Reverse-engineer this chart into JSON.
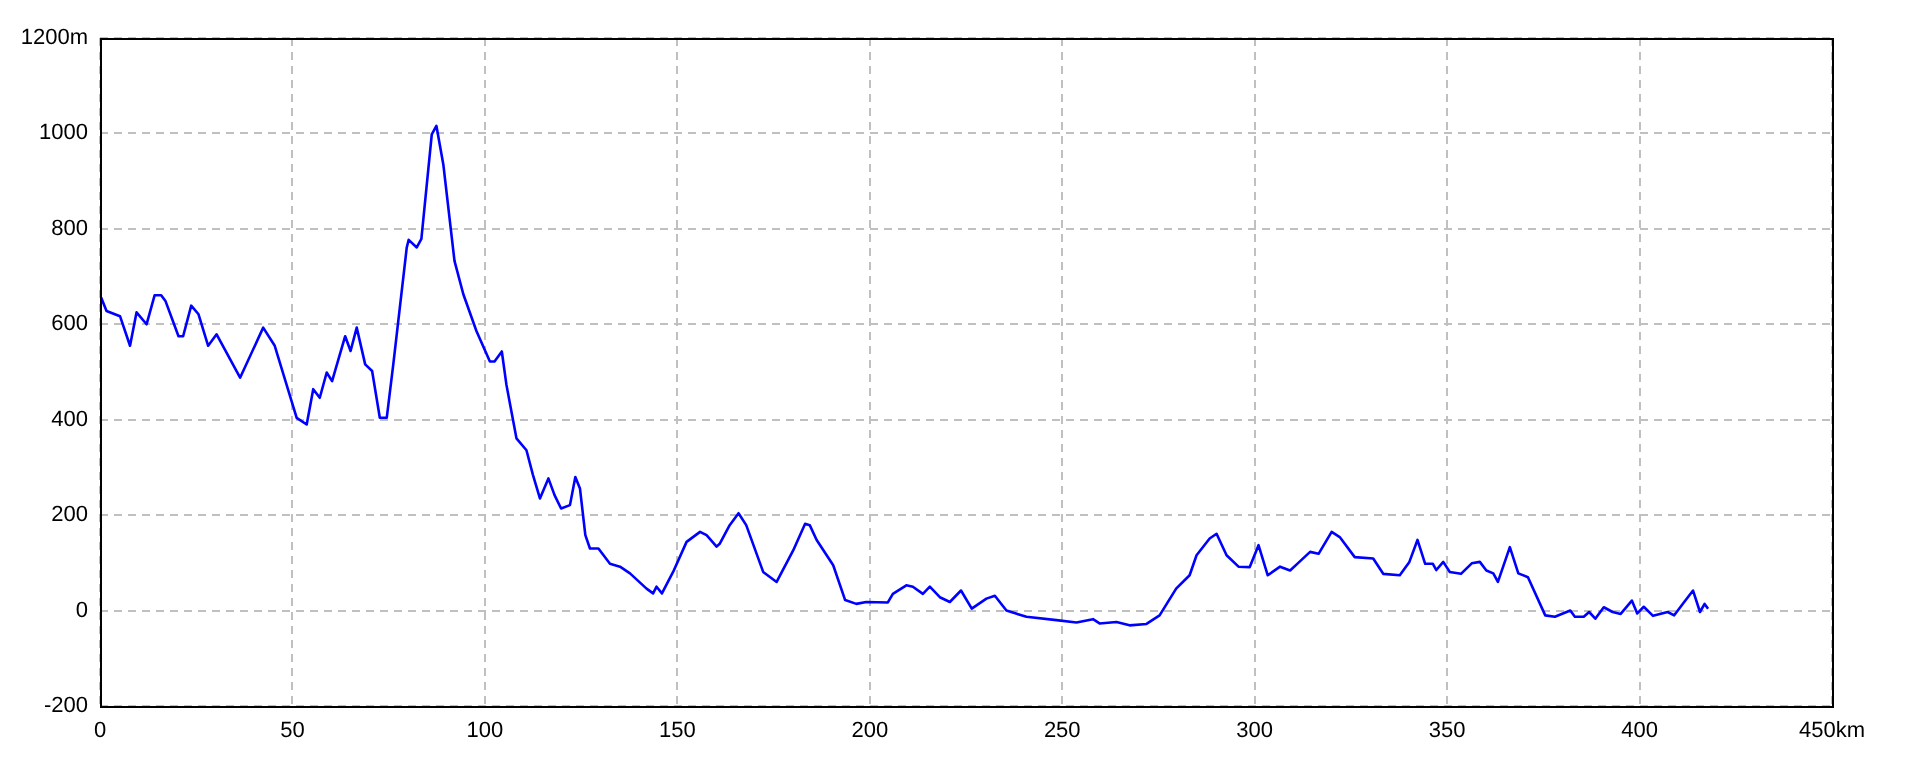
{
  "chart_data": {
    "type": "line",
    "series": [
      {
        "color": "#0000ff",
        "x": [
          0.3,
          1.7,
          5.2,
          7.8,
          9.5,
          12.1,
          14.2,
          15.9,
          17.0,
          20.4,
          21.6,
          23.7,
          25.6,
          28.1,
          30.3,
          36.4,
          42.4,
          45.4,
          51.1,
          53.7,
          55.4,
          57.1,
          58.9,
          60.3,
          63.7,
          65.1,
          66.7,
          68.9,
          70.7,
          72.7,
          74.5,
          76.2,
          79.7,
          80.2,
          82.3,
          83.5,
          86.2,
          87.4,
          89.2,
          92.1,
          94.4,
          97.8,
          101.3,
          102.5,
          104.4,
          105.6,
          108.2,
          110.8,
          112.5,
          114.3,
          116.5,
          118.1,
          119.8,
          122.1,
          123.5,
          124.7,
          126.1,
          127.3,
          129.5,
          132.5,
          135.1,
          137.7,
          142.0,
          143.7,
          144.6,
          146.0,
          148.9,
          152.4,
          155.9,
          157.6,
          160.2,
          161.0,
          163.6,
          165.9,
          167.9,
          172.3,
          175.8,
          180.1,
          183.2,
          184.4,
          186.2,
          190.5,
          193.6,
          196.5,
          199.1,
          204.7,
          206.0,
          209.5,
          211.2,
          213.8,
          215.6,
          218.2,
          220.8,
          223.7,
          226.5,
          230.3,
          232.5,
          235.5,
          240.7,
          248.5,
          253.7,
          258.0,
          259.7,
          264.1,
          267.5,
          271.9,
          275.3,
          279.6,
          283.1,
          284.9,
          288.3,
          290.1,
          292.7,
          295.8,
          298.7,
          301.0,
          303.4,
          306.6,
          309.2,
          311.2,
          314.4,
          316.6,
          320.0,
          322.1,
          326.0,
          330.8,
          333.4,
          337.7,
          340.2,
          342.3,
          344.3,
          346.3,
          347.2,
          349.0,
          350.7,
          353.6,
          356.4,
          358.5,
          360.2,
          362.0,
          363.2,
          366.3,
          368.5,
          371.0,
          375.5,
          378.0,
          382.0,
          383.2,
          385.5,
          386.9,
          388.5,
          390.7,
          393.0,
          395.1,
          398.0,
          399.4,
          401.1,
          403.5,
          407.3,
          409.0,
          411.6,
          413.9,
          415.7,
          416.9,
          417.8
        ],
        "values": [
          656,
          628,
          617,
          555,
          625,
          600,
          661,
          661,
          649,
          575,
          575,
          639,
          621,
          555,
          579,
          488,
          593,
          555,
          404,
          390,
          464,
          446,
          499,
          481,
          575,
          544,
          593,
          516,
          502,
          404,
          404,
          516,
          761,
          777,
          761,
          779,
          998,
          1016,
          935,
          733,
          663,
          586,
          522,
          522,
          543,
          473,
          361,
          336,
          284,
          235,
          277,
          242,
          214,
          221,
          280,
          256,
          158,
          130,
          130,
          98,
          92,
          78,
          46,
          36,
          50,
          36,
          81,
          144,
          165,
          158,
          134,
          140,
          179,
          204,
          179,
          81,
          60,
          126,
          182,
          179,
          148,
          95,
          22,
          14,
          18,
          17,
          35,
          53,
          50,
          35,
          50,
          28,
          18,
          42,
          4,
          25,
          31,
          0,
          -13,
          -20,
          -25,
          -18,
          -27,
          -24,
          -31,
          -28,
          -10,
          46,
          74,
          116,
          151,
          161,
          116,
          92,
          91,
          137,
          74,
          92,
          84,
          99,
          123,
          119,
          165,
          154,
          112,
          109,
          77,
          74,
          102,
          148,
          98,
          98,
          85,
          102,
          81,
          77,
          99,
          102,
          84,
          78,
          60,
          133,
          78,
          70,
          -10,
          -13,
          0,
          -13,
          -13,
          -3,
          -17,
          7,
          -3,
          -7,
          21,
          -6,
          8,
          -11,
          -3,
          -10,
          18,
          42,
          -3,
          14,
          4
        ]
      }
    ],
    "xlim": [
      0,
      450
    ],
    "xticks": [
      0,
      50,
      100,
      150,
      200,
      250,
      300,
      350,
      400,
      {
        "value": 450,
        "label": "450km"
      }
    ],
    "ylim": [
      -200,
      1200
    ],
    "yticks": [
      -200,
      0,
      200,
      400,
      600,
      800,
      1000,
      {
        "value": 1200,
        "label": "1200m"
      }
    ],
    "grid": true,
    "legend": false,
    "marker": "none",
    "line_style": "solid"
  }
}
